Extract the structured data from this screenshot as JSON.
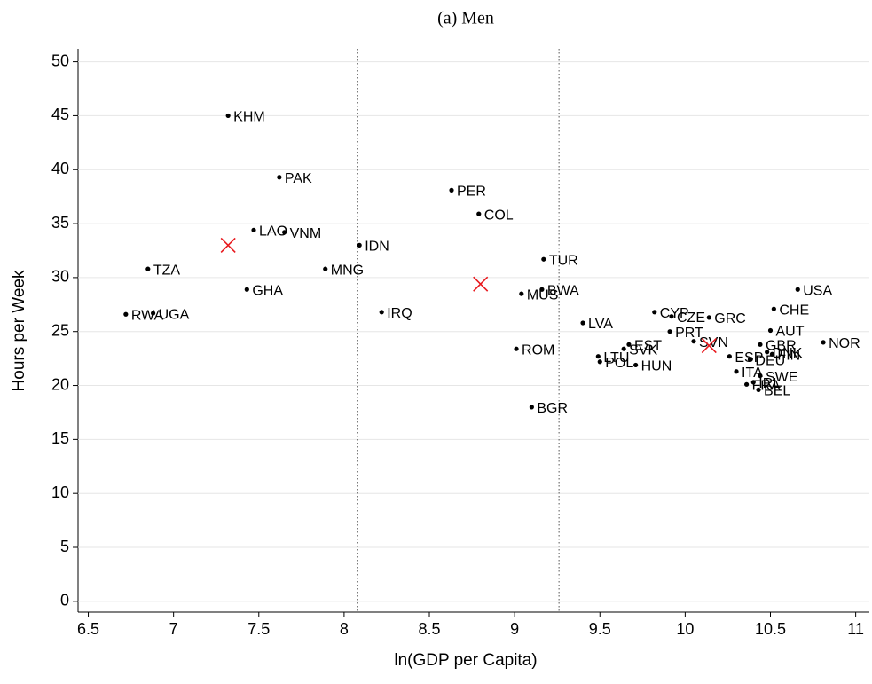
{
  "chart_data": {
    "type": "scatter",
    "title": "(a) Men",
    "x_label": "ln(GDP per Capita)",
    "y_label": "Hours per Week",
    "xlim": [
      6.44,
      11.08
    ],
    "ylim": [
      -1,
      51.2
    ],
    "xticks": [
      6.5,
      7,
      7.5,
      8,
      8.5,
      9,
      9.5,
      10,
      10.5,
      11
    ],
    "yticks": [
      0,
      5,
      10,
      15,
      20,
      25,
      30,
      35,
      40,
      45,
      50
    ],
    "grid": true,
    "vlines": [
      8.08,
      9.26
    ],
    "series": [
      {
        "color": "#000000",
        "marker": "dot",
        "labels": [
          "KHM",
          "PAK",
          "LAO",
          "VNM",
          "IDN",
          "TZA",
          "MNG",
          "GHA",
          "RWA",
          "UGA",
          "IRQ",
          "PER",
          "COL",
          "TUR",
          "MUS",
          "BWA",
          "LVA",
          "ROM",
          "BGR",
          "CYP",
          "CZE",
          "GRC",
          "PRT",
          "SVN",
          "EST",
          "SVK",
          "LTU",
          "POL",
          "HUN",
          "USA",
          "CHE",
          "AUT",
          "NOR",
          "GBR",
          "DNK",
          "FIN",
          "ESP",
          "DEU",
          "ITA",
          "SWE",
          "FRA",
          "IRL",
          "BEL"
        ],
        "x": [
          7.32,
          7.62,
          7.47,
          7.65,
          8.09,
          6.85,
          7.89,
          7.43,
          6.72,
          6.88,
          8.22,
          8.63,
          8.79,
          9.17,
          9.04,
          9.16,
          9.4,
          9.01,
          9.1,
          9.82,
          9.92,
          10.14,
          9.91,
          10.05,
          9.67,
          9.64,
          9.49,
          9.5,
          9.71,
          10.66,
          10.52,
          10.5,
          10.81,
          10.44,
          10.48,
          10.51,
          10.26,
          10.38,
          10.3,
          10.44,
          10.36,
          10.4,
          10.43
        ],
        "values": [
          45.0,
          39.3,
          34.4,
          34.2,
          33.0,
          30.8,
          30.8,
          28.9,
          26.6,
          26.7,
          26.8,
          38.1,
          35.9,
          31.7,
          28.5,
          28.9,
          25.8,
          23.4,
          18.0,
          26.8,
          26.4,
          26.3,
          25.0,
          24.1,
          23.8,
          23.4,
          22.7,
          22.2,
          21.9,
          28.9,
          27.1,
          25.1,
          24.0,
          23.8,
          23.1,
          22.9,
          22.7,
          22.4,
          21.3,
          20.9,
          20.1,
          20.3,
          19.6
        ]
      },
      {
        "color": "#e8191e",
        "marker": "x",
        "x": [
          7.32,
          8.8,
          10.14
        ],
        "values": [
          33.0,
          29.4,
          23.7
        ]
      }
    ]
  }
}
